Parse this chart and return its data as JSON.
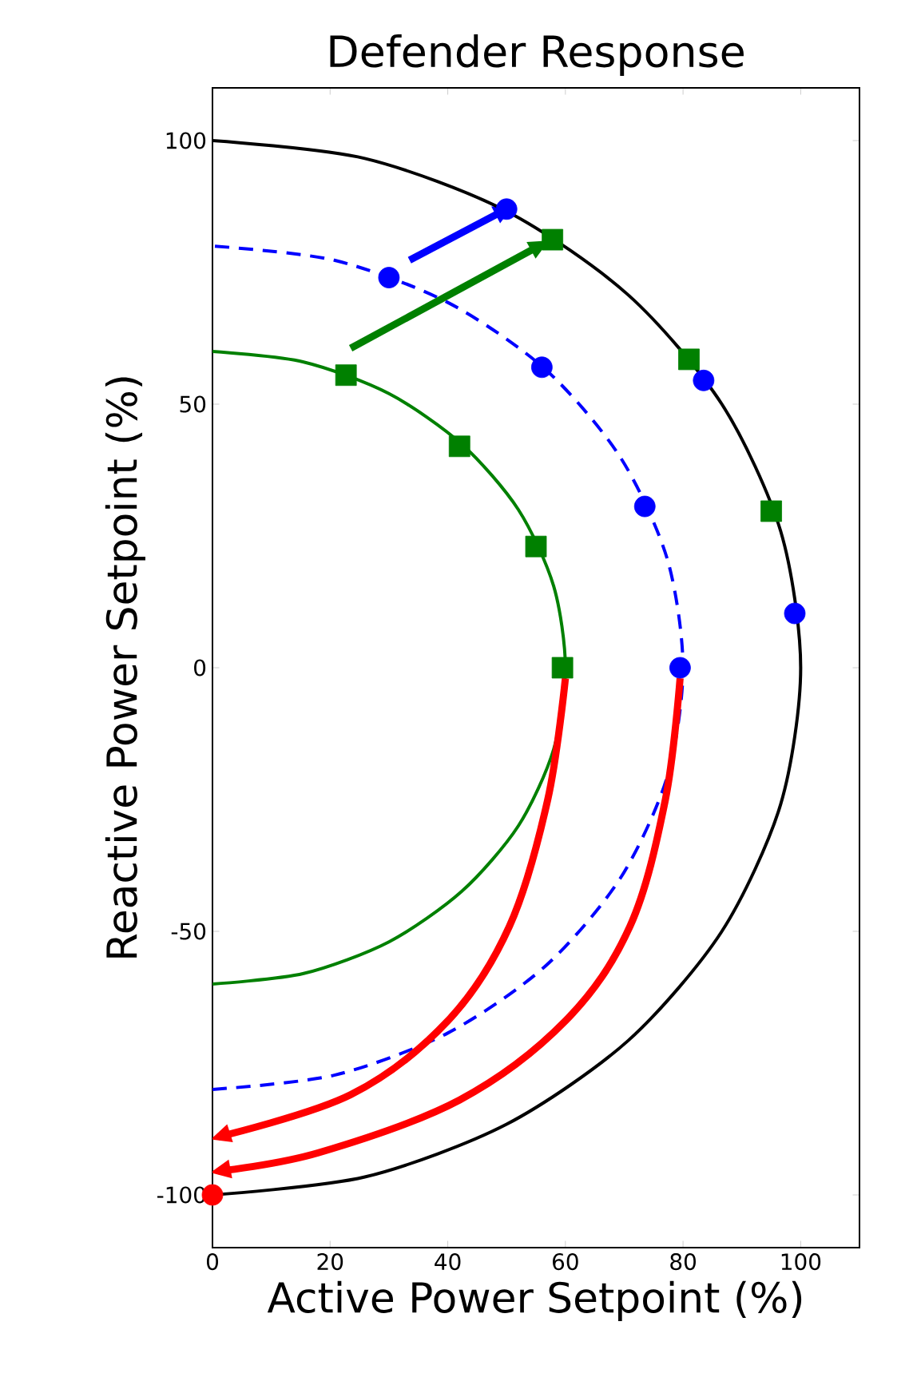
{
  "chart_data": {
    "type": "line",
    "title": "Defender Response",
    "xlabel": "Active Power Setpoint (%)",
    "ylabel": "Reactive Power Setpoint (%)",
    "xlim": [
      0,
      110
    ],
    "ylim": [
      -110,
      110
    ],
    "xticks": [
      0,
      20,
      40,
      60,
      80,
      100
    ],
    "yticks": [
      -100,
      -50,
      0,
      50,
      100
    ],
    "series": [
      {
        "color": "#000000",
        "line_style": "solid",
        "marker": "none",
        "x": [
          0,
          25.9,
          50,
          70.7,
          86.6,
          96.6,
          100,
          96.6,
          86.6,
          70.7,
          50,
          25.9,
          0
        ],
        "values": [
          -100,
          -96.6,
          -86.6,
          -70.7,
          -50,
          -25.9,
          0,
          25.9,
          50,
          70.7,
          86.6,
          96.6,
          100
        ]
      },
      {
        "color": "#0000ff",
        "line_style": "dashed",
        "marker": "none",
        "x": [
          0,
          20.7,
          40,
          56.6,
          69.3,
          77.3,
          80,
          77.3,
          69.3,
          56.6,
          40,
          20.7,
          0
        ],
        "values": [
          -80,
          -77.3,
          -69.3,
          -56.6,
          -40,
          -20.7,
          0,
          20.7,
          40,
          56.6,
          69.3,
          77.3,
          80
        ]
      },
      {
        "color": "#008000",
        "line_style": "solid",
        "marker": "none",
        "x": [
          0,
          15.5,
          30,
          42.4,
          52,
          58,
          60,
          58,
          52,
          42.4,
          30,
          15.5,
          0
        ],
        "values": [
          -60,
          -58,
          -52,
          -42.4,
          -30,
          -15.5,
          0,
          15.5,
          30,
          42.4,
          52,
          58,
          60
        ]
      },
      {
        "color": "#ff0000",
        "x": [
          60,
          57,
          50.5,
          40,
          23.5,
          1
        ],
        "values": [
          -2,
          -25,
          -49,
          -67,
          -81,
          -89
        ]
      },
      {
        "color": "#ff0000",
        "x": [
          79.5,
          77,
          71,
          60,
          42,
          18,
          1
        ],
        "values": [
          -2,
          -25,
          -49,
          -67,
          -82,
          -92,
          -95.5
        ]
      },
      {
        "color": "#0000ff",
        "x": [
          33.5,
          50
        ],
        "values": [
          77.3,
          87
        ]
      },
      {
        "color": "#008000",
        "x": [
          23.5,
          56
        ],
        "values": [
          60.6,
          80.3
        ]
      },
      {
        "type": "scatter",
        "color": "#0000ff",
        "marker": "circle",
        "x": [
          30,
          50,
          56,
          73.5,
          79.5,
          83.5,
          99
        ],
        "values": [
          74,
          87,
          57,
          30.6,
          0,
          54.5,
          10.3
        ]
      },
      {
        "type": "scatter",
        "color": "#008000",
        "marker": "square",
        "x": [
          22.7,
          42,
          55,
          59.5,
          57.8,
          81,
          95
        ],
        "values": [
          55.5,
          42,
          23,
          0,
          81.2,
          58.5,
          29.7
        ]
      },
      {
        "type": "scatter",
        "color": "#ff0000",
        "marker": "circle",
        "x": [
          0
        ],
        "values": [
          -100
        ]
      }
    ]
  }
}
